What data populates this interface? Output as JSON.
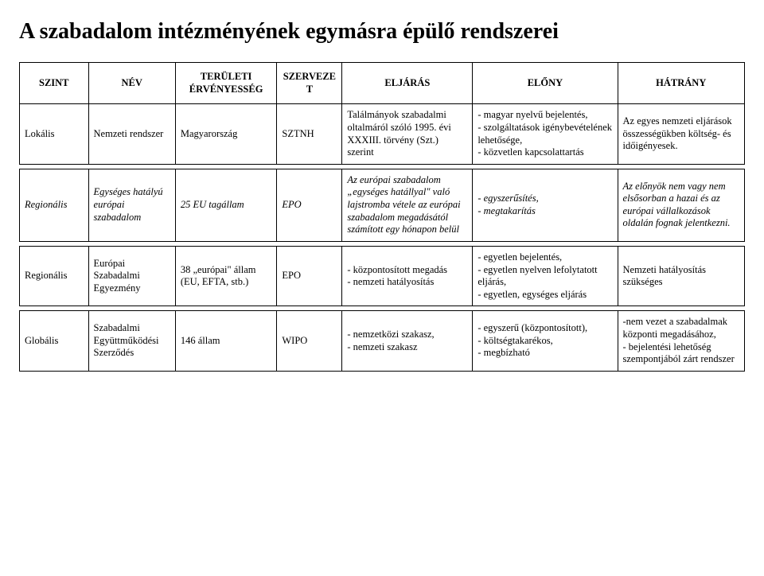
{
  "title": "A szabadalom intézményének egymásra épülő rendszerei",
  "columns": [
    "SZINT",
    "NÉV",
    "TERÜLETI ÉRVÉNYESSÉG",
    "SZERVEZET",
    "ELJÁRÁS",
    "ELŐNY",
    "HÁTRÁNY"
  ],
  "rows": [
    {
      "italic": false,
      "c0": "Lokális",
      "c1": "Nemzeti rendszer",
      "c2": "Magyarország",
      "c3": "SZTNH",
      "c4": "Találmányok szabadalmi oltalmáról szóló 1995. évi XXXIII. törvény (Szt.) szerint",
      "c5": "- magyar nyelvű bejelentés,\n- szolgáltatások igénybevételének lehetősége,\n- közvetlen kapcsolattartás",
      "c6": "Az egyes nemzeti eljárások összességükben költség- és időigényesek."
    },
    {
      "italic": true,
      "c0": "Regionális",
      "c1": "Egységes hatályú európai szabadalom",
      "c2": "25 EU tagállam",
      "c3": "EPO",
      "c4": "Az európai szabadalom „egységes hatállyal\" való lajstromba vétele az európai szabadalom megadásától számított egy hónapon belül",
      "c5": "- egyszerűsítés,\n- megtakarítás",
      "c6": "Az előnyök nem vagy nem elsősorban a hazai és az európai vállalkozások oldalán fognak jelentkezni."
    },
    {
      "italic": false,
      "c0": "Regionális",
      "c1": "Európai Szabadalmi Egyezmény",
      "c2": "38 „európai\" állam (EU, EFTA, stb.)",
      "c3": "EPO",
      "c4": "- központosított megadás\n- nemzeti hatályosítás",
      "c5": "- egyetlen  bejelentés,\n- egyetlen nyelven lefolytatott eljárás,\n- egyetlen, egységes eljárás",
      "c6": "Nemzeti hatályosítás szükséges"
    },
    {
      "italic": false,
      "c0": "Globális",
      "c1": "Szabadalmi Együttműködési Szerződés",
      "c2": "146 állam",
      "c3": "WIPO",
      "c4": "- nemzetközi  szakasz,\n- nemzeti szakasz",
      "c5": "- egyszerű (központosított),\n- költségtakarékos,\n- megbízható",
      "c6": "-nem vezet  a szabadalmak központi megadásához,\n - bejelentési lehetőség szempontjából zárt rendszer"
    }
  ]
}
